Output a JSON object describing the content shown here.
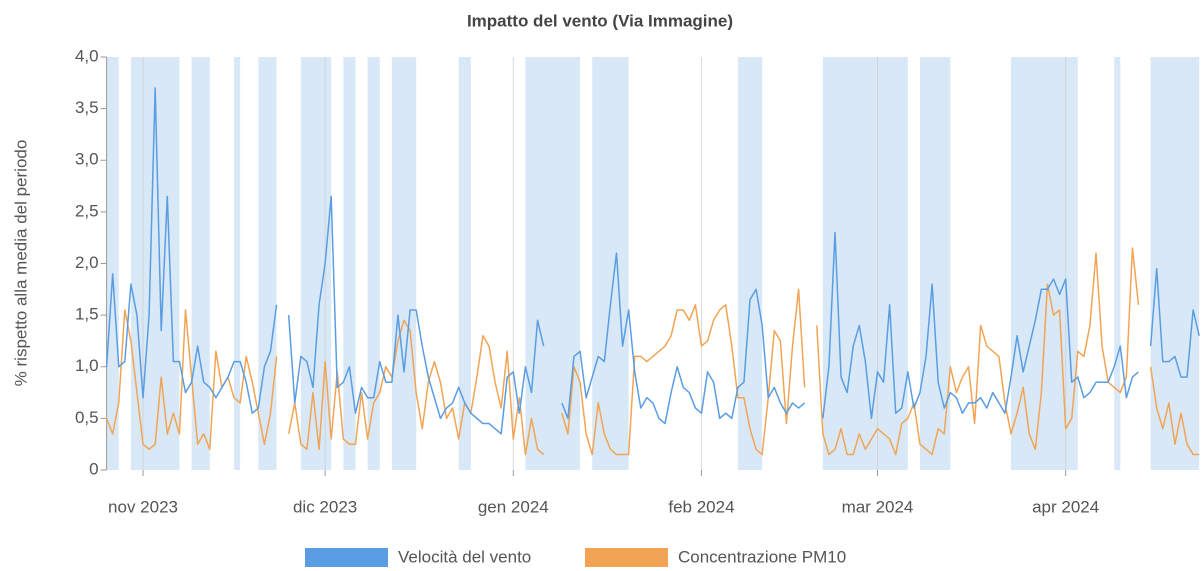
{
  "chart_data": {
    "type": "line",
    "title": "Impatto del vento (Via Immagine)",
    "y_label": "% rispetto alla media del periodo",
    "x": [
      0,
      1,
      2,
      3,
      4,
      5,
      6,
      7,
      8,
      9,
      10,
      11,
      12,
      13,
      14,
      15,
      16,
      17,
      18,
      19,
      20,
      21,
      22,
      23,
      24,
      25,
      26,
      27,
      28,
      29,
      30,
      31,
      32,
      33,
      34,
      35,
      36,
      37,
      38,
      39,
      40,
      41,
      42,
      43,
      44,
      45,
      46,
      47,
      48,
      49,
      50,
      51,
      52,
      53,
      54,
      55,
      56,
      57,
      58,
      59,
      60,
      61,
      62,
      63,
      64,
      65,
      66,
      67,
      68,
      69,
      70,
      71,
      72,
      73,
      74,
      75,
      76,
      77,
      78,
      79,
      80,
      81,
      82,
      83,
      84,
      85,
      86,
      87,
      88,
      89,
      90,
      91,
      92,
      93,
      94,
      95,
      96,
      97,
      98,
      99,
      100,
      101,
      102,
      103,
      104,
      105,
      106,
      107,
      108,
      109,
      110,
      111,
      112,
      113,
      114,
      115,
      116,
      117,
      118,
      119,
      120,
      121,
      122,
      123,
      124,
      125,
      126,
      127,
      128,
      129,
      130,
      131,
      132,
      133,
      134,
      135,
      136,
      137,
      138,
      139,
      140,
      141,
      142,
      143,
      144,
      145,
      146,
      147,
      148,
      149,
      150,
      151,
      152,
      153,
      154,
      155,
      156,
      157,
      158,
      159,
      160,
      161,
      162,
      163,
      164,
      165,
      166,
      167,
      168,
      169,
      170,
      171,
      172,
      173,
      174,
      175,
      176,
      177,
      178,
      179,
      180
    ],
    "series": [
      {
        "name": "Velocità del vento",
        "color": "#5a9de3",
        "values": [
          1.0,
          1.9,
          1.0,
          1.05,
          1.8,
          1.5,
          0.7,
          1.5,
          3.7,
          1.35,
          2.65,
          1.05,
          1.05,
          0.75,
          0.85,
          1.2,
          0.85,
          0.8,
          0.7,
          0.8,
          0.9,
          1.05,
          1.05,
          0.85,
          0.55,
          0.6,
          1.0,
          1.15,
          1.6,
          null,
          1.5,
          0.65,
          1.1,
          1.05,
          0.8,
          1.6,
          2.0,
          2.65,
          0.8,
          0.85,
          1.0,
          0.55,
          0.8,
          0.7,
          0.7,
          1.05,
          0.85,
          0.85,
          1.5,
          0.95,
          1.55,
          1.55,
          1.2,
          0.9,
          0.7,
          0.5,
          0.6,
          0.65,
          0.8,
          0.65,
          0.55,
          0.5,
          0.45,
          0.45,
          0.4,
          0.35,
          0.9,
          0.95,
          0.55,
          1.0,
          0.75,
          1.45,
          1.2,
          null,
          null,
          0.65,
          0.5,
          1.1,
          1.15,
          0.7,
          0.9,
          1.1,
          1.05,
          1.6,
          2.1,
          1.2,
          1.55,
          0.95,
          0.6,
          0.7,
          0.65,
          0.5,
          0.45,
          0.75,
          1.0,
          0.8,
          0.75,
          0.6,
          0.55,
          0.95,
          0.85,
          0.5,
          0.55,
          0.5,
          0.8,
          0.85,
          1.65,
          1.75,
          1.4,
          0.7,
          0.8,
          0.65,
          0.55,
          0.65,
          0.6,
          0.65,
          null,
          null,
          0.5,
          1.0,
          2.3,
          0.9,
          0.75,
          1.2,
          1.4,
          1.05,
          0.5,
          0.95,
          0.85,
          1.6,
          0.55,
          0.6,
          0.95,
          0.6,
          0.75,
          1.1,
          1.8,
          0.85,
          0.6,
          0.75,
          0.7,
          0.55,
          0.65,
          0.65,
          0.7,
          0.6,
          0.75,
          0.65,
          0.55,
          0.9,
          1.3,
          0.95,
          1.2,
          1.45,
          1.75,
          1.75,
          1.85,
          1.7,
          1.85,
          0.85,
          0.9,
          0.7,
          0.75,
          0.85,
          0.85,
          0.85,
          1.0,
          1.2,
          0.7,
          0.9,
          0.95,
          null,
          1.2,
          1.95,
          1.05,
          1.05,
          1.1,
          0.9,
          0.9,
          1.55,
          1.3
        ]
      },
      {
        "name": "Concentrazione PM10",
        "color": "#f2a455",
        "values": [
          0.5,
          0.35,
          0.65,
          1.55,
          1.25,
          0.75,
          0.25,
          0.2,
          0.25,
          0.9,
          0.35,
          0.55,
          0.35,
          1.55,
          0.9,
          0.25,
          0.35,
          0.2,
          1.15,
          0.8,
          0.9,
          0.7,
          0.65,
          1.1,
          0.85,
          0.55,
          0.25,
          0.55,
          1.1,
          null,
          0.35,
          0.65,
          0.25,
          0.2,
          0.75,
          0.2,
          1.05,
          0.3,
          0.95,
          0.3,
          0.25,
          0.25,
          0.75,
          0.3,
          0.65,
          0.75,
          1.0,
          0.9,
          1.25,
          1.45,
          1.35,
          0.75,
          0.4,
          0.85,
          1.05,
          0.85,
          0.5,
          0.6,
          0.3,
          0.65,
          0.55,
          0.9,
          1.3,
          1.2,
          0.85,
          0.6,
          1.15,
          0.3,
          0.7,
          0.15,
          0.5,
          0.2,
          0.15,
          null,
          null,
          0.55,
          0.35,
          1.0,
          0.85,
          0.35,
          0.15,
          0.65,
          0.35,
          0.2,
          0.15,
          0.15,
          0.15,
          1.1,
          1.1,
          1.05,
          1.1,
          1.15,
          1.2,
          1.3,
          1.55,
          1.55,
          1.45,
          1.6,
          1.2,
          1.25,
          1.45,
          1.55,
          1.6,
          1.2,
          0.7,
          0.7,
          0.4,
          0.2,
          0.15,
          0.7,
          1.35,
          1.25,
          0.45,
          1.2,
          1.75,
          0.8,
          null,
          1.4,
          0.35,
          0.15,
          0.2,
          0.4,
          0.15,
          0.15,
          0.35,
          0.2,
          0.3,
          0.4,
          0.35,
          0.3,
          0.15,
          0.45,
          0.5,
          0.65,
          0.25,
          0.2,
          0.15,
          0.4,
          0.35,
          1.0,
          0.75,
          0.9,
          1.0,
          0.45,
          1.4,
          1.2,
          1.15,
          1.1,
          0.65,
          0.35,
          0.55,
          0.8,
          0.35,
          0.2,
          0.75,
          1.8,
          1.5,
          1.55,
          0.4,
          0.5,
          1.15,
          1.1,
          1.4,
          2.1,
          1.2,
          0.85,
          0.8,
          0.75,
          0.9,
          2.15,
          1.6,
          null,
          1.0,
          0.6,
          0.4,
          0.65,
          0.25,
          0.55,
          0.25,
          0.15,
          0.15
        ]
      }
    ],
    "highlight_ranges": [
      [
        0,
        2
      ],
      [
        4,
        12
      ],
      [
        14,
        17
      ],
      [
        21,
        22
      ],
      [
        25,
        28
      ],
      [
        32,
        37
      ],
      [
        39,
        41
      ],
      [
        43,
        45
      ],
      [
        47,
        51
      ],
      [
        58,
        60
      ],
      [
        69,
        78
      ],
      [
        80,
        86
      ],
      [
        104,
        108
      ],
      [
        118,
        132
      ],
      [
        134,
        139
      ],
      [
        149,
        160
      ],
      [
        166,
        167
      ],
      [
        172,
        180
      ]
    ],
    "highlight_color": "#d8e8f7",
    "xlim": [
      0,
      180
    ],
    "xticks": [
      {
        "value": 6,
        "label": "nov 2023"
      },
      {
        "value": 36,
        "label": "dic 2023"
      },
      {
        "value": 67,
        "label": "gen 2024"
      },
      {
        "value": 98,
        "label": "feb 2024"
      },
      {
        "value": 127,
        "label": "mar 2024"
      },
      {
        "value": 158,
        "label": "apr 2024"
      }
    ],
    "ylim": [
      0,
      4
    ],
    "yticks": [
      0,
      {
        "value": 0.5,
        "label": "0,5"
      },
      {
        "value": 1,
        "label": "1,0"
      },
      {
        "value": 1.5,
        "label": "1,5"
      },
      {
        "value": 2,
        "label": "2,0"
      },
      {
        "value": 2.5,
        "label": "2,5"
      },
      {
        "value": 3,
        "label": "3,0"
      },
      {
        "value": 3.5,
        "label": "3,5"
      },
      {
        "value": 4,
        "label": "4,0"
      }
    ],
    "grid": "x",
    "legend": "bottom"
  }
}
